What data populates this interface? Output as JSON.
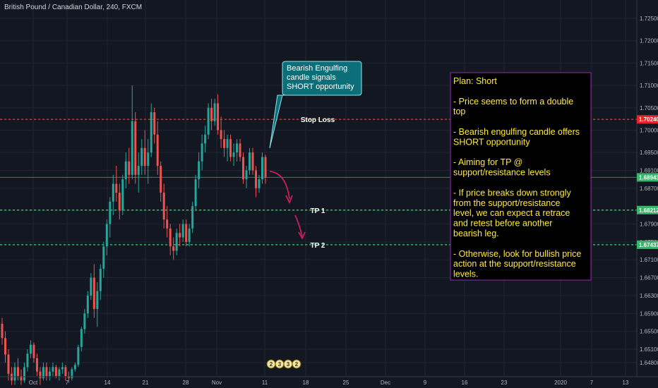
{
  "header": {
    "symbol_title": "British Pound / Canadian Dollar, 240, FXCM"
  },
  "colors": {
    "background": "#131722",
    "grid": "#1f2433",
    "axis_text": "#b2b5be",
    "bull": "#26a69a",
    "bear": "#ef5350",
    "stop_loss": "#e3262c",
    "take_profit": "#3bb36a",
    "price_line": "#2e8b57",
    "plan_border": "#9c27b0",
    "plan_text": "#ffeb3b",
    "callout_bg": "#0b6e78",
    "arrow": "#e91e63"
  },
  "price_axis": {
    "labels": [
      "1.72500",
      "1.72000",
      "1.71500",
      "1.71000",
      "1.70500",
      "1.70000",
      "1.69500",
      "1.69100",
      "1.68700",
      "1.68200",
      "1.67900",
      "1.67500",
      "1.67100",
      "1.66700",
      "1.66300",
      "1.65900",
      "1.65500",
      "1.65100",
      "1.64800"
    ],
    "badges": [
      {
        "value": "1.70240",
        "color": "#e3262c"
      },
      {
        "value": "1.68943",
        "color": "#3bb36a"
      },
      {
        "value": "1.68212",
        "color": "#3bb36a"
      },
      {
        "value": "1.67437",
        "color": "#3bb36a"
      }
    ]
  },
  "time_axis": {
    "labels": [
      "Oct",
      "7",
      "14",
      "21",
      "28",
      "Nov",
      "11",
      "18",
      "25",
      "Dec",
      "9",
      "16",
      "23",
      "2020",
      "7",
      "13"
    ]
  },
  "levels": [
    {
      "label": "Stop Loss",
      "price": 1.7024,
      "style": "stop"
    },
    {
      "label": "TP 1",
      "price": 1.68212,
      "style": "tp"
    },
    {
      "label": "TP 2",
      "price": 1.67437,
      "style": "tp"
    }
  ],
  "current_price": 1.68943,
  "callout": {
    "lines": [
      "Bearish Engulfing",
      "candle signals",
      "SHORT opportunity"
    ]
  },
  "plan": {
    "lines": [
      "Plan: Short",
      "",
      "- Price seems to form a double",
      "top",
      "",
      "- Bearish engulfing candle offers",
      "SHORT opportunity",
      "",
      "- Aiming for TP @",
      "support/resistance levels",
      "",
      "- If price breaks down strongly",
      "from the support/resistance",
      "level, we can expect a retrace",
      "and retest before another",
      "bearish leg.",
      "",
      "- Otherwise, look for bullish price",
      "action at the  support/resistance",
      "levels."
    ]
  },
  "event_icons": [
    "2",
    "3",
    "3",
    "2"
  ],
  "chart_data": {
    "type": "candlestick",
    "title": "British Pound / Canadian Dollar, 240, FXCM",
    "ylim": [
      1.6445,
      1.7285
    ],
    "candles": [
      [
        1.6567,
        1.658,
        1.652,
        1.6535
      ],
      [
        1.6535,
        1.655,
        1.648,
        1.6498
      ],
      [
        1.6498,
        1.651,
        1.644,
        1.6455
      ],
      [
        1.6455,
        1.647,
        1.643,
        1.644
      ],
      [
        1.644,
        1.648,
        1.643,
        1.647
      ],
      [
        1.647,
        1.649,
        1.644,
        1.645
      ],
      [
        1.645,
        1.6465,
        1.643,
        1.644
      ],
      [
        1.644,
        1.648,
        1.6435,
        1.647
      ],
      [
        1.647,
        1.651,
        1.646,
        1.65
      ],
      [
        1.65,
        1.653,
        1.649,
        1.652
      ],
      [
        1.652,
        1.6525,
        1.648,
        1.649
      ],
      [
        1.649,
        1.65,
        1.645,
        1.646
      ],
      [
        1.646,
        1.647,
        1.643,
        1.6445
      ],
      [
        1.6445,
        1.648,
        1.644,
        1.647
      ],
      [
        1.647,
        1.648,
        1.644,
        1.645
      ],
      [
        1.645,
        1.647,
        1.644,
        1.646
      ],
      [
        1.646,
        1.648,
        1.645,
        1.647
      ],
      [
        1.647,
        1.6475,
        1.6445,
        1.645
      ],
      [
        1.645,
        1.647,
        1.644,
        1.6465
      ],
      [
        1.6465,
        1.648,
        1.6455,
        1.647
      ],
      [
        1.647,
        1.6475,
        1.644,
        1.645
      ],
      [
        1.645,
        1.646,
        1.6435,
        1.6445
      ],
      [
        1.6445,
        1.647,
        1.644,
        1.6465
      ],
      [
        1.6465,
        1.648,
        1.646,
        1.6475
      ],
      [
        1.6475,
        1.652,
        1.647,
        1.6515
      ],
      [
        1.6515,
        1.656,
        1.6505,
        1.6555
      ],
      [
        1.6555,
        1.66,
        1.6545,
        1.659
      ],
      [
        1.659,
        1.664,
        1.658,
        1.663
      ],
      [
        1.663,
        1.668,
        1.662,
        1.667
      ],
      [
        1.667,
        1.67,
        1.658,
        1.66
      ],
      [
        1.66,
        1.666,
        1.656,
        1.664
      ],
      [
        1.664,
        1.67,
        1.662,
        1.669
      ],
      [
        1.669,
        1.675,
        1.667,
        1.674
      ],
      [
        1.674,
        1.68,
        1.672,
        1.679
      ],
      [
        1.679,
        1.685,
        1.676,
        1.684
      ],
      [
        1.684,
        1.69,
        1.681,
        1.688
      ],
      [
        1.688,
        1.692,
        1.684,
        1.686
      ],
      [
        1.686,
        1.688,
        1.68,
        1.682
      ],
      [
        1.682,
        1.69,
        1.681,
        1.689
      ],
      [
        1.689,
        1.695,
        1.687,
        1.693
      ],
      [
        1.693,
        1.696,
        1.688,
        1.69
      ],
      [
        1.69,
        1.71,
        1.689,
        1.702
      ],
      [
        1.702,
        1.704,
        1.688,
        1.69
      ],
      [
        1.69,
        1.695,
        1.686,
        1.692
      ],
      [
        1.692,
        1.698,
        1.69,
        1.696
      ],
      [
        1.696,
        1.7,
        1.69,
        1.692
      ],
      [
        1.692,
        1.698,
        1.688,
        1.695
      ],
      [
        1.695,
        1.706,
        1.694,
        1.704
      ],
      [
        1.704,
        1.705,
        1.697,
        1.699
      ],
      [
        1.699,
        1.702,
        1.69,
        1.692
      ],
      [
        1.692,
        1.693,
        1.684,
        1.686
      ],
      [
        1.686,
        1.688,
        1.678,
        1.68
      ],
      [
        1.68,
        1.683,
        1.676,
        1.678
      ],
      [
        1.678,
        1.679,
        1.672,
        1.674
      ],
      [
        1.674,
        1.676,
        1.671,
        1.673
      ],
      [
        1.673,
        1.678,
        1.672,
        1.677
      ],
      [
        1.677,
        1.679,
        1.674,
        1.676
      ],
      [
        1.676,
        1.68,
        1.675,
        1.679
      ],
      [
        1.679,
        1.68,
        1.674,
        1.675
      ],
      [
        1.675,
        1.679,
        1.674,
        1.678
      ],
      [
        1.678,
        1.684,
        1.677,
        1.683
      ],
      [
        1.683,
        1.69,
        1.682,
        1.689
      ],
      [
        1.689,
        1.695,
        1.687,
        1.693
      ],
      [
        1.693,
        1.699,
        1.691,
        1.697
      ],
      [
        1.697,
        1.701,
        1.695,
        1.699
      ],
      [
        1.699,
        1.706,
        1.698,
        1.705
      ],
      [
        1.705,
        1.707,
        1.7,
        1.702
      ],
      [
        1.702,
        1.707,
        1.701,
        1.706
      ],
      [
        1.706,
        1.708,
        1.699,
        1.7
      ],
      [
        1.7,
        1.703,
        1.696,
        1.698
      ],
      [
        1.698,
        1.7,
        1.694,
        1.696
      ],
      [
        1.696,
        1.699,
        1.693,
        1.698
      ],
      [
        1.698,
        1.699,
        1.693,
        1.694
      ],
      [
        1.694,
        1.697,
        1.692,
        1.695
      ],
      [
        1.695,
        1.698,
        1.693,
        1.697
      ],
      [
        1.697,
        1.698,
        1.693,
        1.694
      ],
      [
        1.694,
        1.695,
        1.688,
        1.689
      ],
      [
        1.689,
        1.692,
        1.687,
        1.691
      ],
      [
        1.691,
        1.696,
        1.69,
        1.695
      ],
      [
        1.695,
        1.696,
        1.69,
        1.691
      ],
      [
        1.691,
        1.692,
        1.685,
        1.687
      ],
      [
        1.687,
        1.69,
        1.686,
        1.689
      ],
      [
        1.689,
        1.695,
        1.688,
        1.694
      ],
      [
        1.694,
        1.6945,
        1.688,
        1.6894
      ]
    ]
  }
}
